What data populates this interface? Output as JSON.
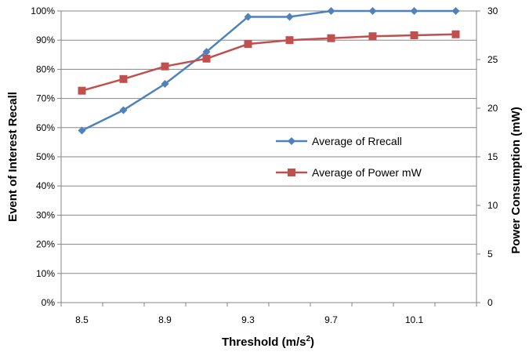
{
  "chart_data": {
    "type": "line",
    "x": [
      8.5,
      8.7,
      8.9,
      9.1,
      9.3,
      9.5,
      9.7,
      9.9,
      10.1,
      10.3
    ],
    "x_tick_labels": [
      "8.5",
      "8.9",
      "9.3",
      "9.7",
      "10.1"
    ],
    "x_tick_values": [
      8.5,
      8.9,
      9.3,
      9.7,
      10.1
    ],
    "xlabel_main": "Threshold  (m/s",
    "xlabel_sup": "2",
    "xlabel_end": ")",
    "ylabel_left": "Event of Interest Recall",
    "ylabel_right": "Power Consumption  (mW)",
    "ylim_left": [
      0,
      100
    ],
    "ylim_right": [
      0,
      30
    ],
    "left_ticks": [
      "0%",
      "10%",
      "20%",
      "30%",
      "40%",
      "50%",
      "60%",
      "70%",
      "80%",
      "90%",
      "100%"
    ],
    "right_ticks": [
      "0",
      "5",
      "10",
      "15",
      "20",
      "25",
      "30"
    ],
    "grid": true,
    "legend_position": "center-right",
    "series": [
      {
        "name": "Average of Rrecall",
        "axis": "left",
        "unit": "%",
        "color": "#4F81BD",
        "marker": "diamond",
        "values": [
          59,
          66,
          75,
          86,
          98,
          98,
          100,
          100,
          100,
          100
        ]
      },
      {
        "name": "Average of Power mW",
        "axis": "right",
        "unit": "mW",
        "color": "#C0504D",
        "marker": "square",
        "values": [
          21.8,
          23.0,
          24.3,
          25.1,
          26.6,
          27.0,
          27.2,
          27.4,
          27.5,
          27.6
        ]
      }
    ]
  }
}
